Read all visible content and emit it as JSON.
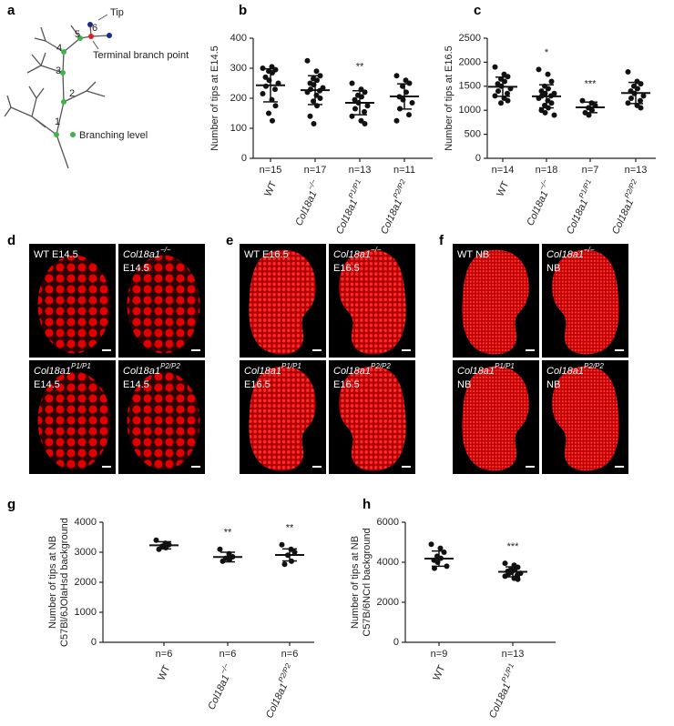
{
  "diagram": {
    "panel": "a",
    "level_labels": [
      "1",
      "2",
      "3",
      "4",
      "5",
      "6"
    ],
    "tip_label": "Tip",
    "terminal_label": "Terminal branch point",
    "legend_label": "Branching level"
  },
  "chart_data": [
    {
      "type": "dotplot",
      "panel": "b",
      "ylabel": [
        "Number of tips at E14.5"
      ],
      "color": "#111",
      "categories": [
        "WT",
        "Col18a1",
        "Col18a1",
        "Col18a1"
      ],
      "category_superscripts": [
        null,
        "−/−",
        "P1/P1",
        "P2/P2"
      ],
      "n_labels": [
        "n=15",
        "n=17",
        "n=13",
        "n=11"
      ],
      "annotations": [
        null,
        null,
        "**",
        null
      ],
      "values": [
        [
          300,
          305,
          295,
          290,
          285,
          270,
          260,
          250,
          240,
          230,
          215,
          195,
          175,
          150,
          125
        ],
        [
          325,
          290,
          275,
          265,
          260,
          250,
          245,
          235,
          230,
          225,
          220,
          210,
          200,
          190,
          175,
          140,
          115
        ],
        [
          250,
          230,
          220,
          210,
          205,
          195,
          185,
          175,
          165,
          155,
          140,
          125,
          115
        ],
        [
          275,
          260,
          250,
          240,
          220,
          205,
          195,
          185,
          165,
          145,
          125
        ]
      ],
      "means": [
        243,
        227,
        185,
        206
      ],
      "sds": [
        55,
        48,
        40,
        42
      ],
      "ylim": [
        0,
        400
      ],
      "yticks": [
        0,
        100,
        200,
        300,
        400
      ]
    },
    {
      "type": "dotplot",
      "panel": "c",
      "ylabel": [
        "Number of tips at E16.5"
      ],
      "color": "#111",
      "categories": [
        "WT",
        "Col18a1",
        "Col18a1",
        "Col18a1"
      ],
      "category_superscripts": [
        null,
        "−/−",
        "P1/P1",
        "P2/P2"
      ],
      "n_labels": [
        "n=14",
        "n=18",
        "n=7",
        "n=13"
      ],
      "annotations": [
        null,
        "*",
        "***",
        null
      ],
      "values": [
        [
          1900,
          1750,
          1700,
          1650,
          1600,
          1550,
          1500,
          1450,
          1400,
          1350,
          1300,
          1250,
          1200,
          1150
        ],
        [
          1850,
          1750,
          1600,
          1500,
          1450,
          1400,
          1350,
          1350,
          1300,
          1300,
          1250,
          1200,
          1150,
          1100,
          1050,
          1000,
          950,
          900
        ],
        [
          1200,
          1150,
          1100,
          1050,
          1000,
          950,
          900
        ],
        [
          1800,
          1600,
          1550,
          1500,
          1450,
          1400,
          1350,
          1300,
          1250,
          1200,
          1150,
          1100,
          1050
        ]
      ],
      "means": [
        1490,
        1290,
        1060,
        1360
      ],
      "sds": [
        200,
        240,
        110,
        220
      ],
      "ylim": [
        0,
        2500
      ],
      "yticks": [
        0,
        500,
        1000,
        1500,
        2000,
        2500
      ]
    },
    {
      "type": "dotplot",
      "panel": "g",
      "ylabel": [
        "Number of tips at NB",
        "C57Bl/6JOlaHsd background"
      ],
      "color": "#111",
      "categories": [
        "WT",
        "Col18a1",
        "Col18a1"
      ],
      "category_superscripts": [
        null,
        "−/−",
        "P2/P2"
      ],
      "n_labels": [
        "n=6",
        "n=6",
        "n=6"
      ],
      "annotations": [
        null,
        "**",
        "**"
      ],
      "values": [
        [
          3400,
          3300,
          3250,
          3200,
          3150,
          3100
        ],
        [
          3100,
          2950,
          2850,
          2800,
          2750,
          2700
        ],
        [
          3250,
          3100,
          3000,
          2900,
          2700,
          2600
        ]
      ],
      "means": [
        3230,
        2840,
        2910
      ],
      "sds": [
        120,
        160,
        200
      ],
      "ylim": [
        0,
        4000
      ],
      "yticks": [
        0,
        1000,
        2000,
        3000,
        4000
      ]
    },
    {
      "type": "dotplot",
      "panel": "h",
      "ylabel": [
        "Number of tips at NB",
        "C57B/6NCrl background"
      ],
      "color": "#111",
      "categories": [
        "WT",
        "Col18a1"
      ],
      "category_superscripts": [
        null,
        "P1/P1"
      ],
      "n_labels": [
        "n=9",
        "n=13"
      ],
      "annotations": [
        null,
        "***"
      ],
      "values": [
        [
          4900,
          4700,
          4500,
          4300,
          4200,
          4100,
          4000,
          3800,
          3700
        ],
        [
          3950,
          3850,
          3750,
          3650,
          3600,
          3550,
          3500,
          3450,
          3400,
          3350,
          3300,
          3200,
          3150
        ]
      ],
      "means": [
        4180,
        3520
      ],
      "sds": [
        380,
        250
      ],
      "ylim": [
        0,
        6000
      ],
      "yticks": [
        0,
        2000,
        4000,
        6000
      ]
    }
  ],
  "image_panels": [
    {
      "panel": "d",
      "tiles": [
        {
          "name": "WT E14.5"
        },
        {
          "name": "Col18a1",
          "sup": "−/−",
          "stage": "E14.5"
        },
        {
          "name": "Col18a1",
          "sup": "P1/P1",
          "stage": "E14.5"
        },
        {
          "name": "Col18a1",
          "sup": "P2/P2",
          "stage": "E14.5"
        }
      ]
    },
    {
      "panel": "e",
      "tiles": [
        {
          "name": "WT E16.5"
        },
        {
          "name": "Col18a1",
          "sup": "−/−",
          "stage": "E16.5"
        },
        {
          "name": "Col18a1",
          "sup": "P1/P1",
          "stage": "E16.5"
        },
        {
          "name": "Col18a1",
          "sup": "P2/P2",
          "stage": "E16.5"
        }
      ]
    },
    {
      "panel": "f",
      "tiles": [
        {
          "name": "WT NB"
        },
        {
          "name": "Col18a1",
          "sup": "−/−",
          "stage": "NB"
        },
        {
          "name": "Col18a1",
          "sup": "P1/P1",
          "stage": "NB"
        },
        {
          "name": "Col18a1",
          "sup": "P2/P2",
          "stage": "NB"
        }
      ]
    }
  ]
}
